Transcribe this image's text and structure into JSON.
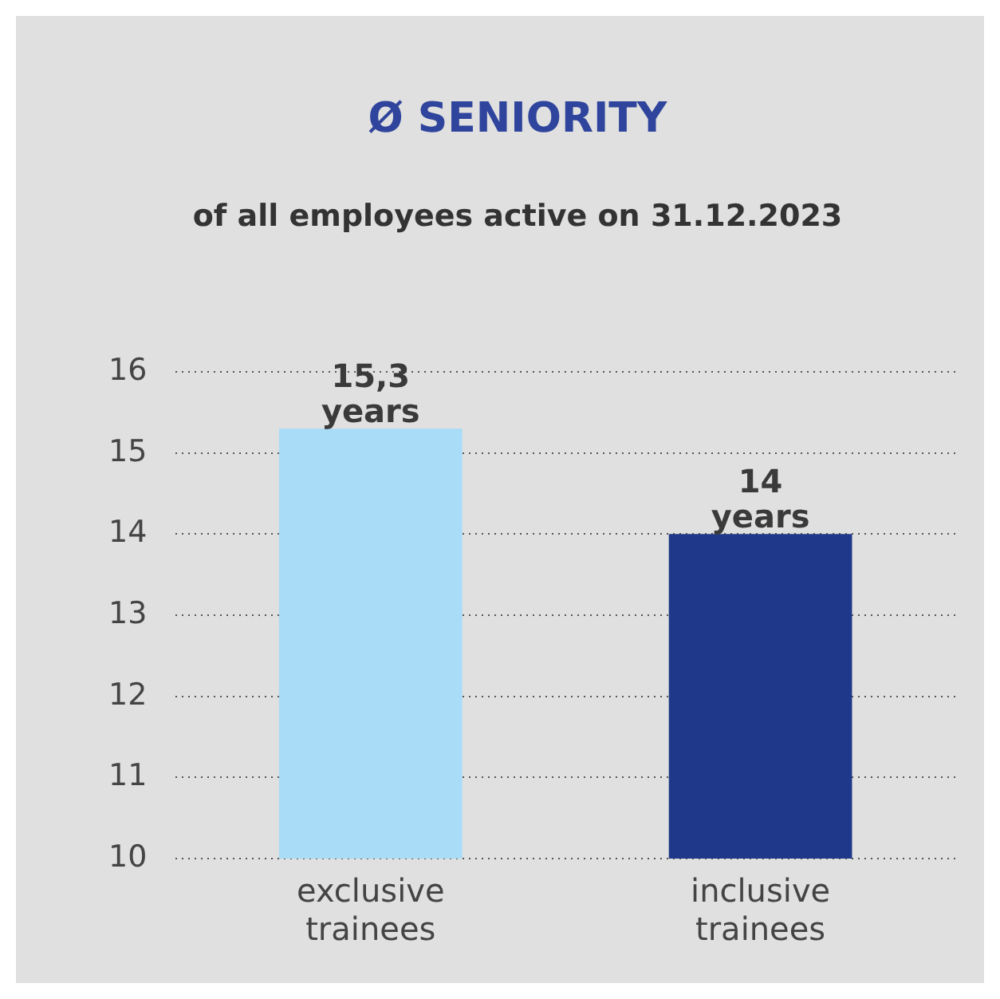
{
  "chart_data": {
    "type": "bar",
    "title": "Ø SENIORITY",
    "subtitle": "of all employees active on 31.12.2023",
    "categories": [
      "exclusive trainees",
      "inclusive trainees"
    ],
    "values": [
      15.3,
      14
    ],
    "colors": [
      "#a8dcf7",
      "#1f3889"
    ],
    "value_labels": [
      "15,3 years",
      "14 years"
    ],
    "ylim": [
      10,
      16
    ],
    "yticks": [
      10,
      11,
      12,
      13,
      14,
      15,
      16
    ],
    "grid": "y",
    "legend": false
  }
}
